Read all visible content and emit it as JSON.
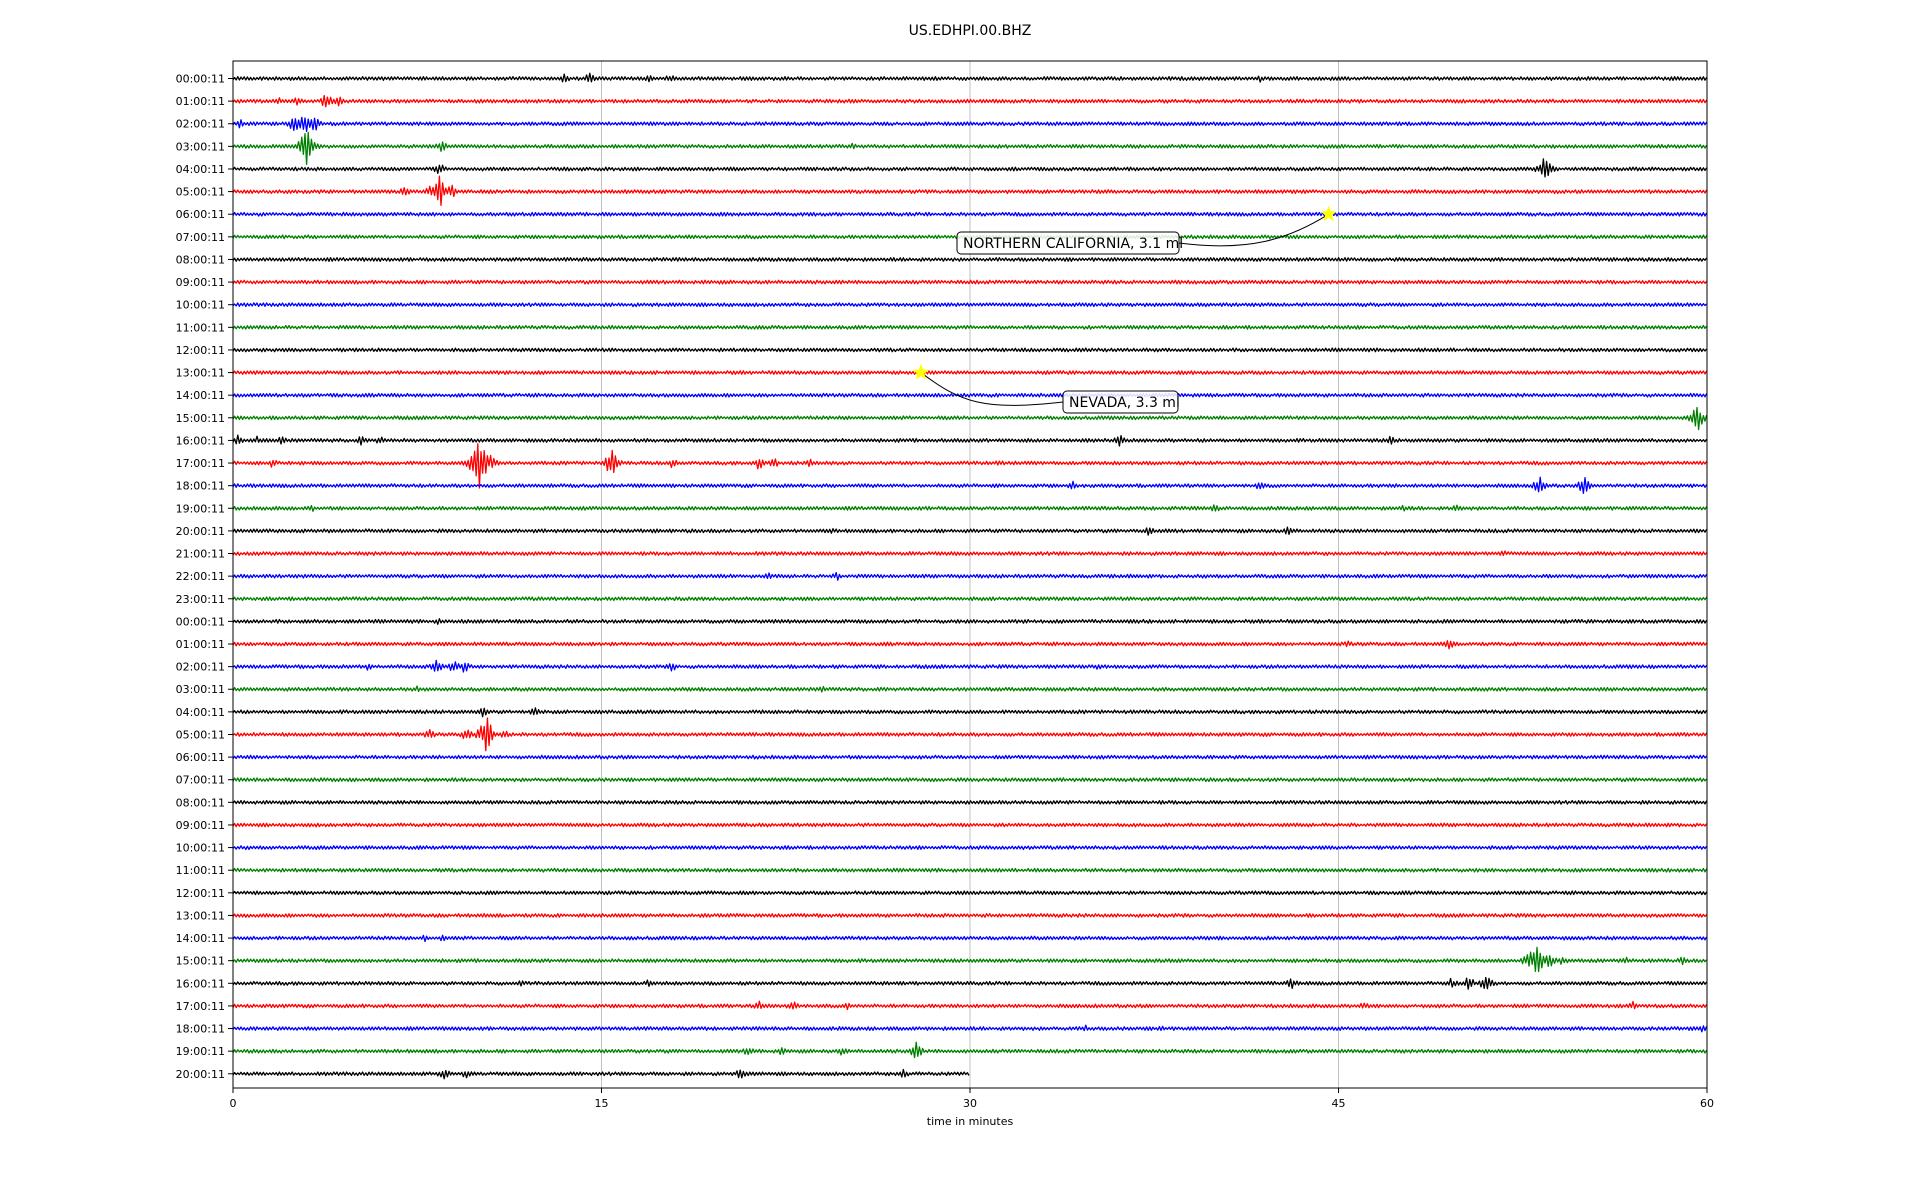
{
  "chart_data": {
    "type": "line",
    "title": "US.EDHPI.00.BHZ",
    "xlabel": "time in minutes",
    "xlim": [
      0,
      60
    ],
    "x_ticks": [
      "0",
      "15",
      "30",
      "45",
      "60"
    ],
    "x_tick_values": [
      0,
      15,
      30,
      45,
      60
    ],
    "grid": "vertical",
    "colors": [
      "#000000",
      "#ff0000",
      "#0000ff",
      "#008000"
    ],
    "row_labels": [
      "00:00:11",
      "01:00:11",
      "02:00:11",
      "03:00:11",
      "04:00:11",
      "05:00:11",
      "06:00:11",
      "07:00:11",
      "08:00:11",
      "09:00:11",
      "10:00:11",
      "11:00:11",
      "12:00:11",
      "13:00:11",
      "14:00:11",
      "15:00:11",
      "16:00:11",
      "17:00:11",
      "18:00:11",
      "19:00:11",
      "20:00:11",
      "21:00:11",
      "22:00:11",
      "23:00:11",
      "00:00:11",
      "01:00:11",
      "02:00:11",
      "03:00:11",
      "04:00:11",
      "05:00:11",
      "06:00:11",
      "07:00:11",
      "08:00:11",
      "09:00:11",
      "10:00:11",
      "11:00:11",
      "12:00:11",
      "13:00:11",
      "14:00:11",
      "15:00:11",
      "16:00:11",
      "17:00:11",
      "18:00:11",
      "19:00:11",
      "20:00:11"
    ],
    "last_row_end_minute": 30,
    "events": [
      {
        "row": 0,
        "minute": 13.5,
        "amp": 5
      },
      {
        "row": 0,
        "minute": 14.5,
        "amp": 6
      },
      {
        "row": 0,
        "minute": 17.0,
        "amp": 5
      },
      {
        "row": 0,
        "minute": 17.8,
        "amp": 5
      },
      {
        "row": 0,
        "minute": 41.8,
        "amp": 4
      },
      {
        "row": 1,
        "minute": 1.8,
        "amp": 5
      },
      {
        "row": 1,
        "minute": 2.6,
        "amp": 5
      },
      {
        "row": 1,
        "minute": 3.8,
        "amp": 9
      },
      {
        "row": 1,
        "minute": 4.3,
        "amp": 6
      },
      {
        "row": 2,
        "minute": 0.3,
        "amp": 5
      },
      {
        "row": 2,
        "minute": 2.5,
        "amp": 11
      },
      {
        "row": 2,
        "minute": 2.9,
        "amp": 14
      },
      {
        "row": 2,
        "minute": 3.3,
        "amp": 10
      },
      {
        "row": 3,
        "minute": 3.0,
        "amp": 24
      },
      {
        "row": 3,
        "minute": 8.5,
        "amp": 6
      },
      {
        "row": 3,
        "minute": 25.2,
        "amp": 4
      },
      {
        "row": 4,
        "minute": 53.4,
        "amp": 14
      },
      {
        "row": 4,
        "minute": 8.4,
        "amp": 7
      },
      {
        "row": 5,
        "minute": 7.0,
        "amp": 6
      },
      {
        "row": 5,
        "minute": 8.1,
        "amp": 8
      },
      {
        "row": 5,
        "minute": 8.4,
        "amp": 20
      },
      {
        "row": 5,
        "minute": 8.9,
        "amp": 8
      },
      {
        "row": 15,
        "minute": 59.6,
        "amp": 16
      },
      {
        "row": 16,
        "minute": 0.2,
        "amp": 6
      },
      {
        "row": 16,
        "minute": 1.0,
        "amp": 5
      },
      {
        "row": 16,
        "minute": 2.0,
        "amp": 5
      },
      {
        "row": 16,
        "minute": 5.2,
        "amp": 5
      },
      {
        "row": 16,
        "minute": 6.0,
        "amp": 5
      },
      {
        "row": 16,
        "minute": 36.1,
        "amp": 7
      },
      {
        "row": 16,
        "minute": 47.1,
        "amp": 5
      },
      {
        "row": 17,
        "minute": 1.6,
        "amp": 5
      },
      {
        "row": 17,
        "minute": 9.7,
        "amp": 10
      },
      {
        "row": 17,
        "minute": 10.0,
        "amp": 38
      },
      {
        "row": 17,
        "minute": 10.5,
        "amp": 10
      },
      {
        "row": 17,
        "minute": 15.4,
        "amp": 16
      },
      {
        "row": 17,
        "minute": 17.9,
        "amp": 6
      },
      {
        "row": 17,
        "minute": 21.4,
        "amp": 7
      },
      {
        "row": 17,
        "minute": 22.0,
        "amp": 6
      },
      {
        "row": 17,
        "minute": 23.5,
        "amp": 5
      },
      {
        "row": 17,
        "minute": 31.2,
        "amp": 4
      },
      {
        "row": 18,
        "minute": 34.2,
        "amp": 5
      },
      {
        "row": 18,
        "minute": 41.8,
        "amp": 5
      },
      {
        "row": 18,
        "minute": 53.2,
        "amp": 10
      },
      {
        "row": 18,
        "minute": 55.0,
        "amp": 10
      },
      {
        "row": 19,
        "minute": 3.2,
        "amp": 4
      },
      {
        "row": 19,
        "minute": 40.0,
        "amp": 5
      },
      {
        "row": 19,
        "minute": 47.6,
        "amp": 4
      },
      {
        "row": 19,
        "minute": 49.8,
        "amp": 5
      },
      {
        "row": 20,
        "minute": 24.3,
        "amp": 4
      },
      {
        "row": 20,
        "minute": 37.3,
        "amp": 7
      },
      {
        "row": 20,
        "minute": 43.0,
        "amp": 6
      },
      {
        "row": 21,
        "minute": 51.7,
        "amp": 4
      },
      {
        "row": 22,
        "minute": 21.8,
        "amp": 4
      },
      {
        "row": 22,
        "minute": 24.6,
        "amp": 5
      },
      {
        "row": 24,
        "minute": 8.4,
        "amp": 4
      },
      {
        "row": 25,
        "minute": 45.4,
        "amp": 4
      },
      {
        "row": 25,
        "minute": 49.5,
        "amp": 6
      },
      {
        "row": 26,
        "minute": 5.5,
        "amp": 4
      },
      {
        "row": 26,
        "minute": 8.3,
        "amp": 9
      },
      {
        "row": 26,
        "minute": 9.0,
        "amp": 8
      },
      {
        "row": 26,
        "minute": 9.4,
        "amp": 7
      },
      {
        "row": 26,
        "minute": 17.9,
        "amp": 6
      },
      {
        "row": 26,
        "minute": 35.2,
        "amp": 4
      },
      {
        "row": 27,
        "minute": 7.5,
        "amp": 4
      },
      {
        "row": 27,
        "minute": 24.0,
        "amp": 4
      },
      {
        "row": 28,
        "minute": 10.2,
        "amp": 6
      },
      {
        "row": 28,
        "minute": 12.3,
        "amp": 5
      },
      {
        "row": 28,
        "minute": 21.5,
        "amp": 4
      },
      {
        "row": 29,
        "minute": 8.0,
        "amp": 6
      },
      {
        "row": 29,
        "minute": 9.5,
        "amp": 7
      },
      {
        "row": 29,
        "minute": 10.3,
        "amp": 22
      },
      {
        "row": 29,
        "minute": 11.0,
        "amp": 6
      },
      {
        "row": 38,
        "minute": 7.8,
        "amp": 4
      },
      {
        "row": 38,
        "minute": 8.5,
        "amp": 4
      },
      {
        "row": 39,
        "minute": 52.8,
        "amp": 12
      },
      {
        "row": 39,
        "minute": 53.1,
        "amp": 20
      },
      {
        "row": 39,
        "minute": 53.6,
        "amp": 10
      },
      {
        "row": 39,
        "minute": 54.1,
        "amp": 6
      },
      {
        "row": 39,
        "minute": 56.7,
        "amp": 5
      },
      {
        "row": 39,
        "minute": 59.0,
        "amp": 5
      },
      {
        "row": 40,
        "minute": 11.7,
        "amp": 4
      },
      {
        "row": 40,
        "minute": 16.9,
        "amp": 4
      },
      {
        "row": 40,
        "minute": 43.1,
        "amp": 6
      },
      {
        "row": 40,
        "minute": 49.6,
        "amp": 6
      },
      {
        "row": 40,
        "minute": 50.3,
        "amp": 8
      },
      {
        "row": 40,
        "minute": 51.0,
        "amp": 10
      },
      {
        "row": 41,
        "minute": 21.4,
        "amp": 6
      },
      {
        "row": 41,
        "minute": 22.8,
        "amp": 7
      },
      {
        "row": 41,
        "minute": 25.0,
        "amp": 5
      },
      {
        "row": 41,
        "minute": 46.0,
        "amp": 5
      },
      {
        "row": 41,
        "minute": 57.0,
        "amp": 5
      },
      {
        "row": 42,
        "minute": 34.7,
        "amp": 4
      },
      {
        "row": 42,
        "minute": 37.8,
        "amp": 4
      },
      {
        "row": 42,
        "minute": 59.8,
        "amp": 5
      },
      {
        "row": 43,
        "minute": 21.0,
        "amp": 6
      },
      {
        "row": 43,
        "minute": 22.3,
        "amp": 5
      },
      {
        "row": 43,
        "minute": 24.8,
        "amp": 5
      },
      {
        "row": 43,
        "minute": 27.8,
        "amp": 10
      },
      {
        "row": 44,
        "minute": 8.6,
        "amp": 7
      },
      {
        "row": 44,
        "minute": 9.5,
        "amp": 5
      },
      {
        "row": 44,
        "minute": 20.7,
        "amp": 7
      },
      {
        "row": 44,
        "minute": 27.3,
        "amp": 6
      }
    ],
    "annotations": [
      {
        "text": "NORTHERN CALIFORNIA, 3.1 ml",
        "row": 6,
        "minute": 44.6
      },
      {
        "text": "NEVADA, 3.3 ml",
        "row": 13,
        "minute": 28.0
      }
    ],
    "marker_color": "#ffff00"
  }
}
